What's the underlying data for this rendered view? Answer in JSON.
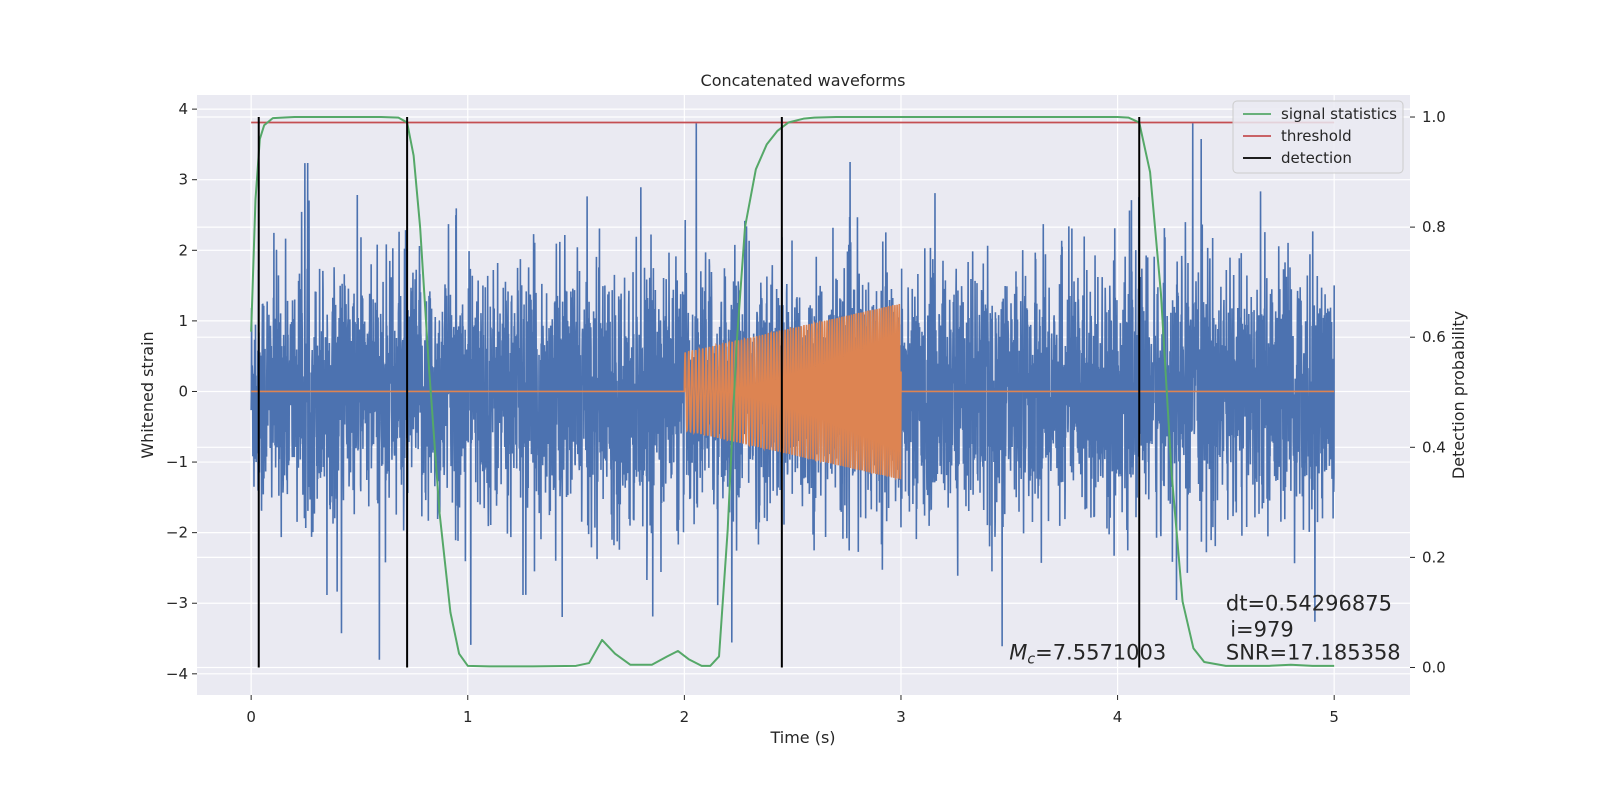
{
  "chart_data": {
    "type": "line",
    "title": "Concatenated waveforms",
    "xlabel": "Time (s)",
    "ylabel": "Whitened strain",
    "ylabel_right": "Detection probability",
    "xlim": [
      -0.25,
      5.35
    ],
    "ylim": [
      -4.3,
      4.2
    ],
    "ylim_right": [
      -0.05,
      1.04
    ],
    "x_ticks": [
      0,
      1,
      2,
      3,
      4,
      5
    ],
    "x_tick_labels": [
      "0",
      "1",
      "2",
      "3",
      "4",
      "5"
    ],
    "y_ticks": [
      -4,
      -3,
      -2,
      -1,
      0,
      1,
      2,
      3,
      4
    ],
    "y_tick_labels": [
      "−4",
      "−3",
      "−2",
      "−1",
      "0",
      "1",
      "2",
      "3",
      "4"
    ],
    "y_right_ticks": [
      0.0,
      0.2,
      0.4,
      0.6,
      0.8,
      1.0
    ],
    "y_right_tick_labels": [
      "0.0",
      "0.2",
      "0.4",
      "0.6",
      "0.8",
      "1.0"
    ],
    "grid": true,
    "legend_position": "top-right",
    "series": [
      {
        "key": "strain",
        "axis": "left",
        "color": "#4c72b0",
        "description": "noisy whitened strain, dense noise spanning t=0 to 5 s, peaks up to about ±3.8",
        "x_range": [
          0,
          5
        ],
        "amplitude_envelope": 3.8
      },
      {
        "key": "template",
        "axis": "left",
        "color": "#dd8452",
        "description": "chirp template, zero outside the chirp; chirp from t=2.0 to 3.0 s with amplitude growing from about 0.55 to 1.25",
        "x_range": [
          0,
          5
        ],
        "chirp": {
          "start": 2.0,
          "end": 3.0,
          "amp_start": 0.55,
          "amp_end": 1.25
        }
      },
      {
        "key": "stat",
        "name": "signal statistics",
        "axis": "right",
        "color": "#55a868",
        "x": [
          0,
          0.02,
          0.04,
          0.06,
          0.1,
          0.2,
          0.4,
          0.6,
          0.68,
          0.72,
          0.75,
          0.78,
          0.82,
          0.87,
          0.92,
          0.96,
          1.0,
          1.1,
          1.3,
          1.5,
          1.56,
          1.62,
          1.68,
          1.75,
          1.85,
          1.92,
          1.97,
          2.02,
          2.08,
          2.12,
          2.16,
          2.2,
          2.24,
          2.28,
          2.33,
          2.38,
          2.43,
          2.48,
          2.55,
          2.6,
          2.7,
          3.0,
          3.5,
          4.0,
          4.05,
          4.1,
          4.15,
          4.2,
          4.25,
          4.3,
          4.35,
          4.4,
          4.5,
          4.7,
          4.8,
          4.9,
          5.0
        ],
        "y": [
          0.61,
          0.85,
          0.96,
          0.985,
          0.998,
          1.0,
          1.0,
          1.0,
          0.999,
          0.99,
          0.93,
          0.8,
          0.55,
          0.28,
          0.1,
          0.025,
          0.003,
          0.002,
          0.002,
          0.003,
          0.008,
          0.05,
          0.025,
          0.005,
          0.005,
          0.02,
          0.03,
          0.015,
          0.003,
          0.003,
          0.02,
          0.25,
          0.58,
          0.8,
          0.905,
          0.95,
          0.975,
          0.99,
          0.997,
          0.999,
          1.0,
          1.0,
          1.0,
          1.0,
          0.999,
          0.99,
          0.9,
          0.68,
          0.35,
          0.12,
          0.035,
          0.01,
          0.003,
          0.003,
          0.005,
          0.003,
          0.003
        ]
      },
      {
        "key": "threshold",
        "name": "threshold",
        "axis": "right",
        "color": "#c44e52",
        "x": [
          0,
          5
        ],
        "y": [
          0.99,
          0.99
        ]
      }
    ],
    "detections": {
      "name": "detection",
      "color": "#000000",
      "x": [
        0.035,
        0.72,
        2.45,
        4.1
      ],
      "y_range": [
        0.0,
        1.0
      ]
    },
    "annotations": [
      {
        "key": "mc",
        "text": "=7.5571003",
        "symbol": "M",
        "subscript": "c",
        "x": 3.5,
        "y": -3.8
      },
      {
        "key": "dt",
        "text": "dt=0.54296875",
        "x": 4.5,
        "y": -3.1
      },
      {
        "key": "i",
        "text": "i=979",
        "x": 4.52,
        "y": -3.47
      },
      {
        "key": "snr",
        "text": "SNR=17.185358",
        "x": 4.5,
        "y": -3.8
      }
    ]
  }
}
